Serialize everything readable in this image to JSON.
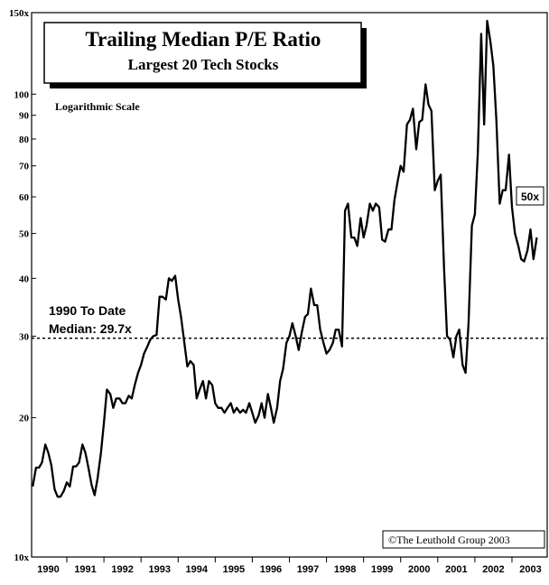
{
  "chart_data": {
    "type": "line",
    "title": "Trailing Median P/E Ratio",
    "subtitle": "Largest 20 Tech Stocks",
    "scale_note": "Logarithmic Scale",
    "median_label_line1": "1990 To Date",
    "median_label_line2": "Median: 29.7x",
    "median_value": 29.7,
    "current_label": "50x",
    "copyright": "©The Leuthold Group 2003",
    "log_scale": true,
    "ylim": [
      10,
      150
    ],
    "xlim": [
      1989.55,
      2003.45
    ],
    "y_ticks": [
      {
        "value": 150,
        "label": "150x"
      },
      {
        "value": 100,
        "label": "100"
      },
      {
        "value": 90,
        "label": "90"
      },
      {
        "value": 80,
        "label": "80"
      },
      {
        "value": 70,
        "label": "70"
      },
      {
        "value": 60,
        "label": "60"
      },
      {
        "value": 50,
        "label": "50"
      },
      {
        "value": 40,
        "label": "40"
      },
      {
        "value": 30,
        "label": "30"
      },
      {
        "value": 20,
        "label": "20"
      },
      {
        "value": 10,
        "label": "10x"
      }
    ],
    "x_ticks": [
      "1990",
      "1991",
      "1992",
      "1993",
      "1994",
      "1995",
      "1996",
      "1997",
      "1998",
      "1999",
      "2000",
      "2001",
      "2002",
      "2003"
    ],
    "series": [
      {
        "color": "#000000",
        "x": [
          1989.58,
          1989.67,
          1989.75,
          1989.83,
          1989.92,
          1990.0,
          1990.08,
          1990.17,
          1990.25,
          1990.33,
          1990.42,
          1990.5,
          1990.58,
          1990.67,
          1990.75,
          1990.83,
          1990.92,
          1991.0,
          1991.08,
          1991.17,
          1991.25,
          1991.33,
          1991.42,
          1991.5,
          1991.58,
          1991.67,
          1991.75,
          1991.83,
          1991.92,
          1992.0,
          1992.08,
          1992.17,
          1992.25,
          1992.33,
          1992.42,
          1992.5,
          1992.58,
          1992.67,
          1992.75,
          1992.83,
          1992.92,
          1993.0,
          1993.08,
          1993.17,
          1993.25,
          1993.33,
          1993.42,
          1993.5,
          1993.58,
          1993.67,
          1993.75,
          1993.83,
          1993.92,
          1994.0,
          1994.08,
          1994.17,
          1994.25,
          1994.33,
          1994.42,
          1994.5,
          1994.58,
          1994.67,
          1994.75,
          1994.83,
          1994.92,
          1995.0,
          1995.08,
          1995.17,
          1995.25,
          1995.33,
          1995.42,
          1995.5,
          1995.58,
          1995.67,
          1995.75,
          1995.83,
          1995.92,
          1996.0,
          1996.08,
          1996.17,
          1996.25,
          1996.33,
          1996.42,
          1996.5,
          1996.58,
          1996.67,
          1996.75,
          1996.83,
          1996.92,
          1997.0,
          1997.08,
          1997.17,
          1997.25,
          1997.33,
          1997.42,
          1997.5,
          1997.58,
          1997.67,
          1997.75,
          1997.83,
          1997.92,
          1998.0,
          1998.08,
          1998.17,
          1998.25,
          1998.33,
          1998.42,
          1998.5,
          1998.58,
          1998.67,
          1998.75,
          1998.83,
          1998.92,
          1999.0,
          1999.08,
          1999.17,
          1999.25,
          1999.33,
          1999.42,
          1999.5,
          1999.58,
          1999.67,
          1999.75,
          1999.83,
          1999.92,
          2000.0,
          2000.08,
          2000.17,
          2000.25,
          2000.33,
          2000.42,
          2000.5,
          2000.58,
          2000.67,
          2000.75,
          2000.83,
          2000.92,
          2001.0,
          2001.08,
          2001.17,
          2001.25,
          2001.33,
          2001.42,
          2001.5,
          2001.58,
          2001.67,
          2001.75,
          2001.83,
          2001.92,
          2002.0,
          2002.08,
          2002.17,
          2002.25,
          2002.33,
          2002.42,
          2002.5,
          2002.58,
          2002.67,
          2002.75,
          2002.83,
          2002.92,
          2003.0,
          2003.08,
          2003.17
        ],
        "y": [
          14.2,
          15.6,
          15.6,
          16.0,
          17.5,
          16.8,
          15.8,
          14.0,
          13.5,
          13.5,
          13.9,
          14.5,
          14.2,
          15.7,
          15.7,
          16.0,
          17.5,
          16.8,
          15.6,
          14.3,
          13.6,
          14.8,
          16.8,
          19.5,
          23.0,
          22.5,
          21.0,
          22.0,
          22.0,
          21.5,
          21.5,
          22.3,
          22.0,
          23.5,
          25.0,
          26.0,
          27.5,
          28.5,
          29.5,
          30.0,
          30.2,
          36.5,
          36.5,
          36.0,
          40.0,
          39.5,
          40.5,
          36.0,
          33.0,
          29.0,
          25.8,
          26.5,
          26.0,
          22.0,
          23.0,
          24.0,
          22.0,
          24.0,
          23.5,
          21.5,
          21.0,
          21.0,
          20.5,
          21.0,
          21.5,
          20.5,
          21.0,
          20.5,
          20.8,
          20.5,
          21.5,
          20.5,
          19.5,
          20.2,
          21.5,
          20.0,
          22.5,
          21.0,
          19.5,
          21.0,
          24.0,
          25.5,
          29.0,
          30.0,
          32.0,
          30.0,
          28.0,
          30.5,
          33.0,
          33.5,
          38.0,
          35.0,
          35.0,
          31.0,
          29.0,
          27.5,
          28.0,
          29.0,
          31.0,
          31.0,
          28.5,
          56.0,
          58.0,
          49.0,
          49.0,
          47.0,
          54.0,
          49.0,
          52.0,
          58.0,
          56.0,
          58.0,
          57.0,
          48.5,
          48.0,
          51.0,
          51.0,
          59.0,
          65.0,
          70.0,
          68.0,
          86.0,
          88.0,
          93.0,
          76.0,
          87.0,
          88.0,
          105.0,
          95.0,
          92.0,
          62.0,
          65.0,
          67.0,
          42.0,
          30.0,
          29.5,
          27.0,
          30.0,
          31.0,
          26.0,
          25.0,
          32.0,
          52.0,
          55.0,
          75.0,
          135.0,
          86.0,
          144.0,
          130.0,
          115.0,
          88.0,
          58.0,
          62.0,
          62.0,
          74.0,
          57.0,
          50.0,
          47.0,
          44.0,
          43.5,
          46.0,
          51.0,
          44.0,
          49.0
        ]
      }
    ]
  }
}
